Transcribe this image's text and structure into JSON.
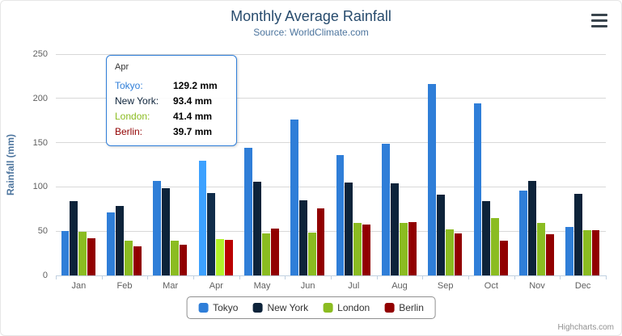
{
  "title": "Monthly Average Rainfall",
  "subtitle": "Source: WorldClimate.com",
  "credits": "Highcharts.com",
  "export_menu": {
    "icon": "hamburger-menu-icon"
  },
  "chart_data": {
    "type": "bar",
    "title": "Monthly Average Rainfall",
    "subtitle": "Source: WorldClimate.com",
    "xlabel": "",
    "ylabel": "Rainfall (mm)",
    "ylim": [
      0,
      250
    ],
    "yticks": [
      0,
      50,
      100,
      150,
      200,
      250
    ],
    "grid": true,
    "legend_position": "bottom",
    "categories": [
      "Jan",
      "Feb",
      "Mar",
      "Apr",
      "May",
      "Jun",
      "Jul",
      "Aug",
      "Sep",
      "Oct",
      "Nov",
      "Dec"
    ],
    "series": [
      {
        "name": "Tokyo",
        "color": "#2f7ed8",
        "values": [
          49.9,
          71.5,
          106.4,
          129.2,
          144.0,
          176.0,
          135.6,
          148.5,
          216.4,
          194.1,
          95.6,
          54.4
        ]
      },
      {
        "name": "New York",
        "color": "#0d233a",
        "values": [
          83.6,
          78.8,
          98.5,
          93.4,
          106.0,
          84.5,
          105.0,
          104.3,
          91.2,
          83.5,
          106.6,
          92.3
        ]
      },
      {
        "name": "London",
        "color": "#8bbc21",
        "values": [
          48.9,
          38.8,
          39.3,
          41.4,
          47.0,
          48.3,
          59.0,
          59.6,
          52.4,
          65.2,
          59.3,
          51.2
        ]
      },
      {
        "name": "Berlin",
        "color": "#910000",
        "values": [
          42.4,
          33.2,
          34.5,
          39.7,
          52.6,
          75.5,
          57.4,
          60.4,
          47.6,
          39.1,
          46.8,
          51.1
        ]
      }
    ],
    "hover_category_index": 3
  },
  "tooltip": {
    "category": "Apr",
    "rows": [
      {
        "name": "Tokyo:",
        "value": "129.2 mm",
        "color": "#2f7ed8"
      },
      {
        "name": "New York:",
        "value": "93.4 mm",
        "color": "#0d233a"
      },
      {
        "name": "London:",
        "value": "41.4 mm",
        "color": "#8bbc21"
      },
      {
        "name": "Berlin:",
        "value": "39.7 mm",
        "color": "#910000"
      }
    ]
  }
}
